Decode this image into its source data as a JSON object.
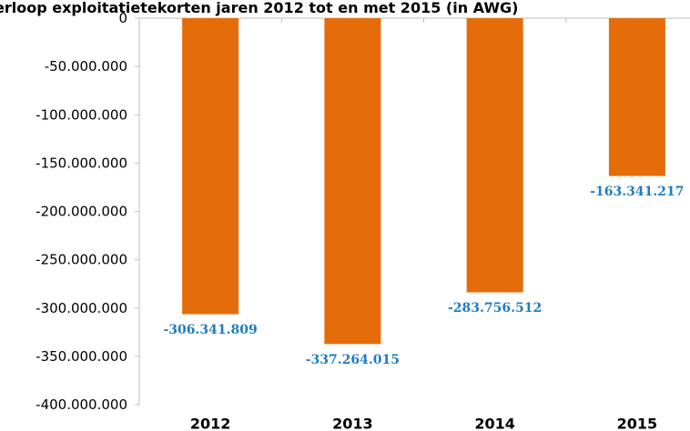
{
  "chart_data": {
    "type": "bar",
    "title": "erloop exploitatietekorten jaren 2012 tot en met 2015 (in AWG)",
    "categories": [
      "2012",
      "2013",
      "2014",
      "2015"
    ],
    "values": [
      -306341809,
      -337264015,
      -283756512,
      -163341217
    ],
    "data_labels": [
      "-306.341.809",
      "-337.264.015",
      "-283.756.512",
      "-163.341.217"
    ],
    "yticks": [
      0,
      -50000000,
      -100000000,
      -150000000,
      -200000000,
      -250000000,
      -300000000,
      -350000000,
      -400000000
    ],
    "ytick_labels": [
      "0",
      "-50.000.000",
      "-100.000.000",
      "-150.000.000",
      "-200.000.000",
      "-250.000.000",
      "-300.000.000",
      "-350.000.000",
      "-400.000.000"
    ],
    "ylim": [
      -400000000,
      0
    ],
    "xlabel": "",
    "ylabel": "",
    "grid": false,
    "colors": {
      "bar": "#E46C0A",
      "label": "#1F7CC0",
      "axis": "#BFBFBF"
    }
  }
}
